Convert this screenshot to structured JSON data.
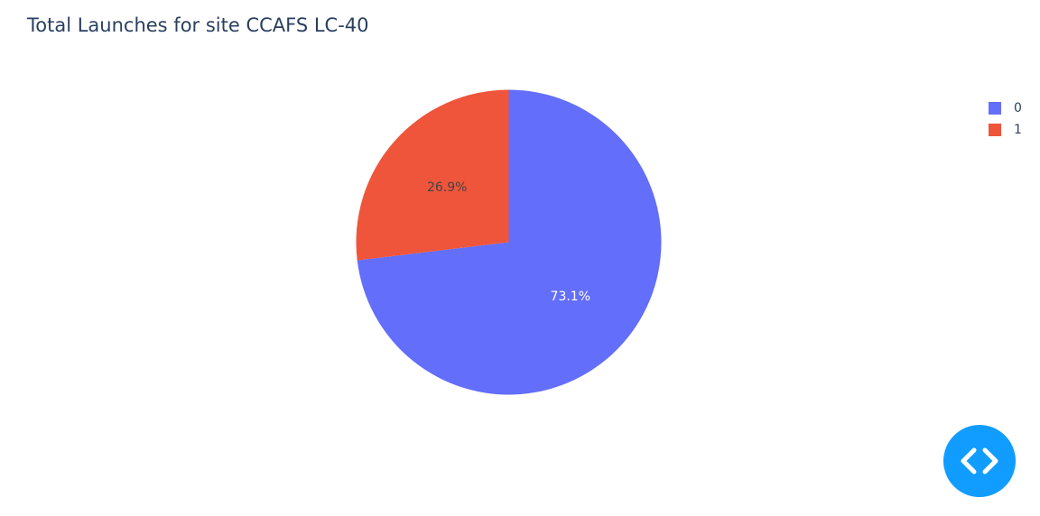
{
  "chart_data": {
    "type": "pie",
    "title": "Total Launches for site CCAFS LC-40",
    "categories": [
      "0",
      "1"
    ],
    "values": [
      73.1,
      26.9
    ],
    "labels": [
      "73.1%",
      "26.9%"
    ],
    "colors": [
      "#636efa",
      "#ef553b"
    ],
    "label_colors": [
      "#ffffff",
      "#444444"
    ],
    "sort": "descending",
    "direction": "clockwise",
    "start_angle": "12 o'clock",
    "legend_position": "top-right"
  },
  "fab": {
    "icon": "code-brackets-icon",
    "color": "#119dff"
  }
}
